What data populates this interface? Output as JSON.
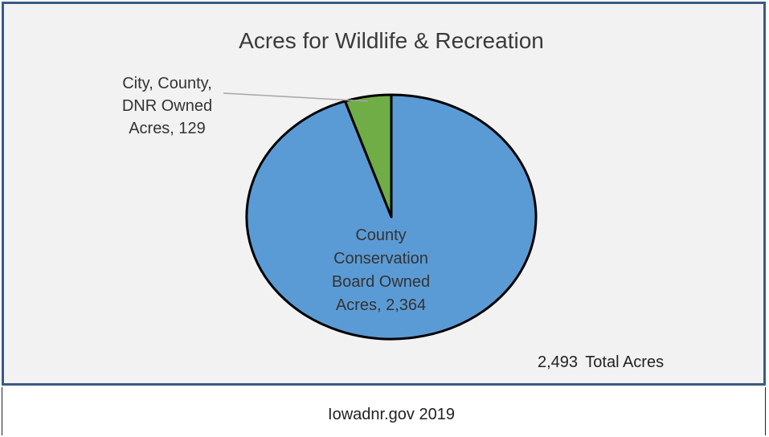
{
  "chart_data": {
    "type": "pie",
    "title": "Acres for Wildlife & Recreation",
    "slices": [
      {
        "label": "County Conservation Board Owned Acres",
        "value": 2364,
        "display_lines": [
          "County",
          "Conservation",
          "Board Owned",
          "Acres, 2,364"
        ],
        "color": "#5b9bd5"
      },
      {
        "label": "City, County, DNR Owned Acres",
        "value": 129,
        "display_lines": [
          "City, County,",
          "DNR Owned",
          "Acres, 129"
        ],
        "color": "#70ad47"
      }
    ],
    "total_value": 2493,
    "total_label": {
      "number": "2,493",
      "text": "Total Acres"
    },
    "frame_border_color": "#3a5a86",
    "plot_background": "#f2f2f2"
  },
  "caption": "Iowadnr.gov 2019"
}
